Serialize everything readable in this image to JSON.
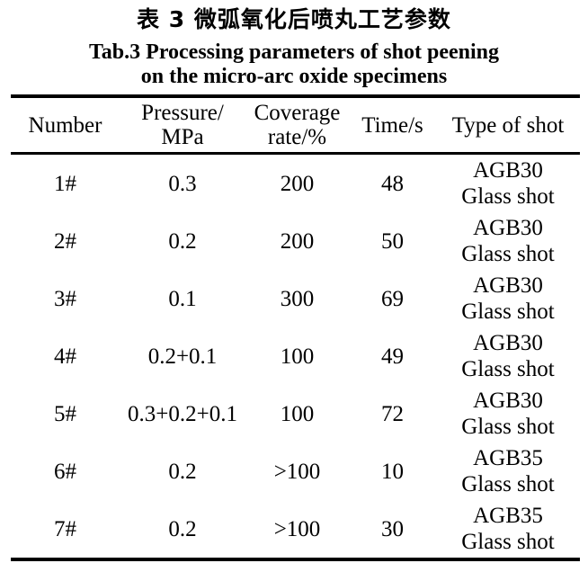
{
  "title_cn": "表 3 微弧氧化后喷丸工艺参数",
  "title_en": {
    "line1": "Tab.3 Processing parameters of shot peening",
    "line2": "on the micro-arc oxide specimens"
  },
  "table": {
    "headers": [
      {
        "lines": [
          "Number"
        ]
      },
      {
        "lines": [
          "Pressure/",
          "MPa"
        ]
      },
      {
        "lines": [
          "Coverage",
          "rate/%"
        ]
      },
      {
        "lines": [
          "Time/s"
        ]
      },
      {
        "lines": [
          "Type of shot"
        ]
      }
    ],
    "rows": [
      {
        "number": "1#",
        "pressure": "0.3",
        "coverage": "200",
        "time": "48",
        "shot": [
          "AGB30",
          "Glass shot"
        ]
      },
      {
        "number": "2#",
        "pressure": "0.2",
        "coverage": "200",
        "time": "50",
        "shot": [
          "AGB30",
          "Glass shot"
        ]
      },
      {
        "number": "3#",
        "pressure": "0.1",
        "coverage": "300",
        "time": "69",
        "shot": [
          "AGB30",
          "Glass shot"
        ]
      },
      {
        "number": "4#",
        "pressure": "0.2+0.1",
        "coverage": "100",
        "time": "49",
        "shot": [
          "AGB30",
          "Glass shot"
        ]
      },
      {
        "number": "5#",
        "pressure": "0.3+0.2+0.1",
        "coverage": "100",
        "time": "72",
        "shot": [
          "AGB30",
          "Glass shot"
        ]
      },
      {
        "number": "6#",
        "pressure": "0.2",
        "coverage": ">100",
        "time": "10",
        "shot": [
          "AGB35",
          "Glass shot"
        ]
      },
      {
        "number": "7#",
        "pressure": "0.2",
        "coverage": ">100",
        "time": "30",
        "shot": [
          "AGB35",
          "Glass shot"
        ]
      }
    ]
  },
  "colors": {
    "text": "#000000",
    "background": "#ffffff",
    "rule": "#000000"
  }
}
